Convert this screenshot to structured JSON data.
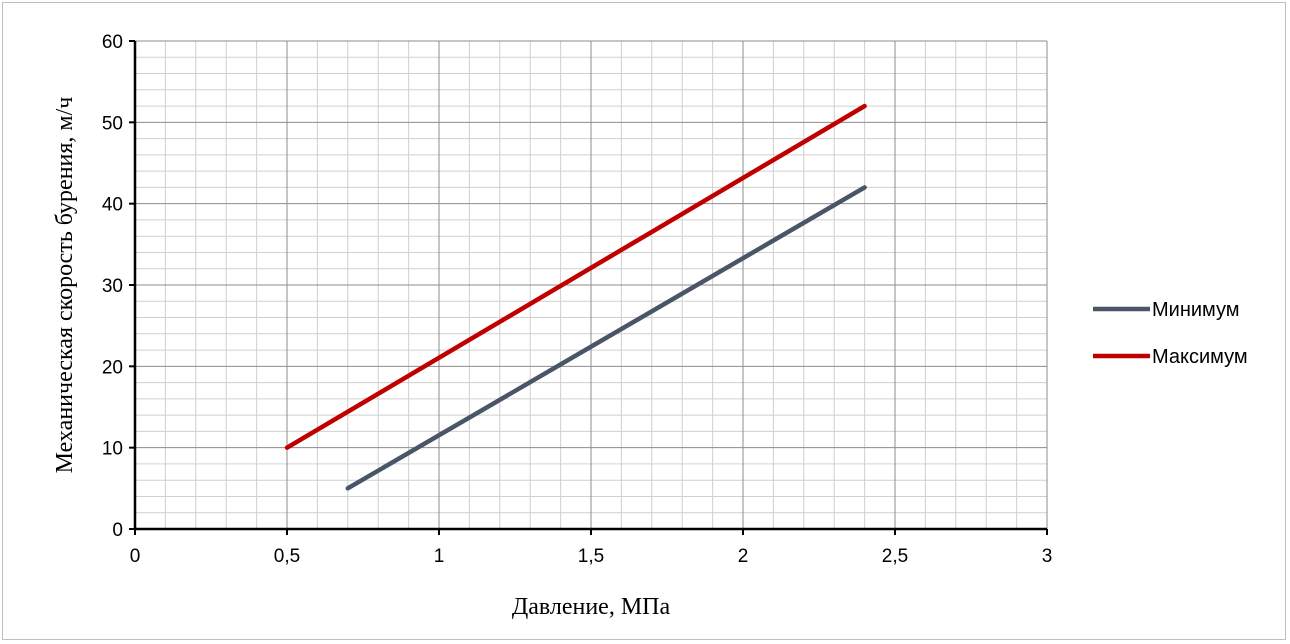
{
  "chart_data": {
    "type": "line",
    "xlabel": "Давление, МПа",
    "ylabel": "Механическая скорость бурения, м/ч",
    "xlim": [
      0,
      3
    ],
    "ylim": [
      0,
      60
    ],
    "x_ticks": [
      "0",
      "0,5",
      "1",
      "1,5",
      "2",
      "2,5",
      "3"
    ],
    "y_ticks": [
      "0",
      "10",
      "20",
      "30",
      "40",
      "50",
      "60"
    ],
    "grid": "major and minor",
    "legend_position": "right",
    "series": [
      {
        "name": "Минимум",
        "color": "#4a5568",
        "x": [
          0.7,
          2.4
        ],
        "y": [
          5,
          42
        ]
      },
      {
        "name": "Максимум",
        "color": "#c00000",
        "x": [
          0.5,
          2.4
        ],
        "y": [
          10,
          52
        ]
      }
    ]
  }
}
